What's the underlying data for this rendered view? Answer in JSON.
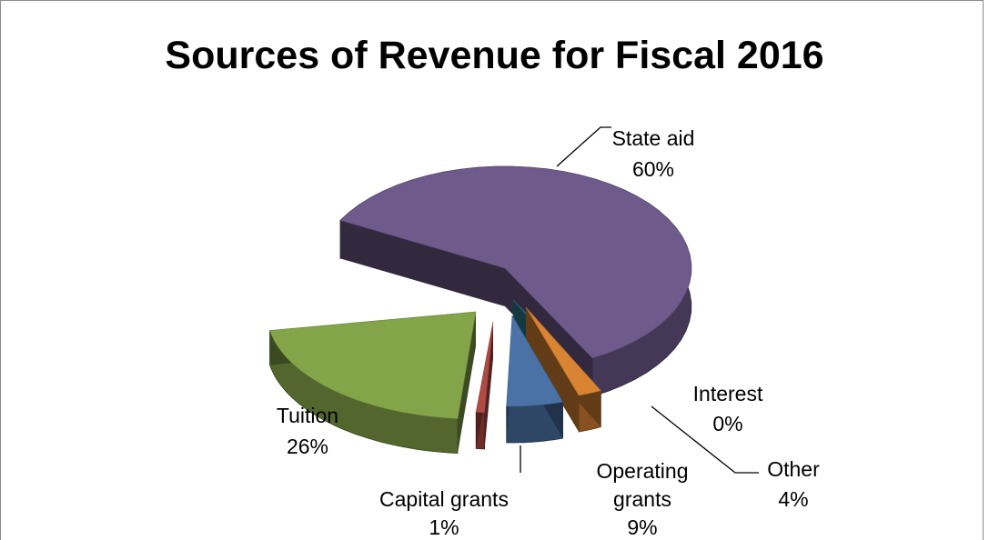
{
  "chart_data": {
    "type": "pie",
    "style": "3d-exploded",
    "title": "Sources of Revenue for Fiscal 2016",
    "slices": [
      {
        "name": "State aid",
        "value": 60,
        "label": "60%",
        "color": "#6f5a8c"
      },
      {
        "name": "Interest",
        "value": 0,
        "label": "0%",
        "color": "#2f7f8f"
      },
      {
        "name": "Other",
        "value": 4,
        "label": "4%",
        "color": "#d98432"
      },
      {
        "name": "Operating grants",
        "value": 9,
        "label": "9%",
        "color": "#4a72a6"
      },
      {
        "name": "Capital grants",
        "value": 1,
        "label": "1%",
        "color": "#b04a45"
      },
      {
        "name": "Tuition",
        "value": 26,
        "label": "26%",
        "color": "#84a44a"
      }
    ],
    "label_lines": [
      "Operating",
      "grants"
    ],
    "legend": "none"
  }
}
